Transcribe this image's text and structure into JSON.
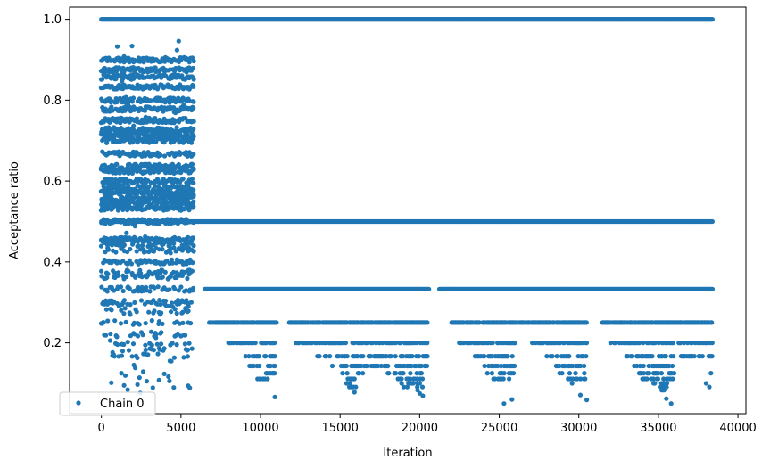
{
  "chart_data": {
    "type": "scatter",
    "xlabel": "Iteration",
    "ylabel": "Acceptance ratio",
    "xlim": [
      -2000,
      40500
    ],
    "ylim": [
      0.025,
      1.03
    ],
    "x_ticks": [
      0,
      5000,
      10000,
      15000,
      20000,
      25000,
      30000,
      35000,
      40000
    ],
    "x_tick_labels": [
      "0",
      "5000",
      "10000",
      "15000",
      "20000",
      "25000",
      "30000",
      "35000",
      "40000"
    ],
    "y_ticks": [
      0.2,
      0.4,
      0.6,
      0.8,
      1.0
    ],
    "y_tick_labels": [
      "0.2",
      "0.4",
      "0.6",
      "0.8",
      "1.0"
    ],
    "grid": false,
    "legend": {
      "placement": "bottom-left",
      "entries": [
        "Chain 0"
      ]
    },
    "marker_color": "#1f77b4",
    "series": [
      {
        "name": "Chain 0",
        "x_range": [
          0,
          38400
        ],
        "dense_levels": [
          1.0,
          0.5,
          0.333
        ],
        "burn_in_end": 6000,
        "burn_in_levels": [
          0.9,
          0.875,
          0.857,
          0.833,
          0.8,
          0.778,
          0.75,
          0.727,
          0.714,
          0.7,
          0.667,
          0.636,
          0.625,
          0.6,
          0.583,
          0.571,
          0.556,
          0.545,
          0.533,
          0.5,
          0.455,
          0.444,
          0.429,
          0.4,
          0.375,
          0.364,
          0.333,
          0.3,
          0.286,
          0.273,
          0.25,
          0.222,
          0.2,
          0.182,
          0.167,
          0.143,
          0.125,
          0.111,
          0.1,
          0.09
        ],
        "band_segments": [
          {
            "level": 0.25,
            "from": 6800,
            "to": 11000
          },
          {
            "level": 0.25,
            "from": 11800,
            "to": 20500
          },
          {
            "level": 0.25,
            "from": 22000,
            "to": 30500
          },
          {
            "level": 0.25,
            "from": 31500,
            "to": 38400
          },
          {
            "level": 0.2,
            "from": 8000,
            "to": 11000
          },
          {
            "level": 0.2,
            "from": 12200,
            "to": 20500
          },
          {
            "level": 0.2,
            "from": 22500,
            "to": 26000
          },
          {
            "level": 0.2,
            "from": 27000,
            "to": 30500
          },
          {
            "level": 0.2,
            "from": 32000,
            "to": 38400
          },
          {
            "level": 0.167,
            "from": 9000,
            "to": 11000
          },
          {
            "level": 0.167,
            "from": 13500,
            "to": 20500
          },
          {
            "level": 0.167,
            "from": 23500,
            "to": 26000
          },
          {
            "level": 0.167,
            "from": 28000,
            "to": 30500
          },
          {
            "level": 0.167,
            "from": 33000,
            "to": 38400
          },
          {
            "level": 0.143,
            "from": 9300,
            "to": 11000
          },
          {
            "level": 0.143,
            "from": 14500,
            "to": 20500
          },
          {
            "level": 0.143,
            "from": 24000,
            "to": 26000
          },
          {
            "level": 0.143,
            "from": 28500,
            "to": 30500
          },
          {
            "level": 0.143,
            "from": 33500,
            "to": 36000
          },
          {
            "level": 0.125,
            "from": 9500,
            "to": 11000
          },
          {
            "level": 0.125,
            "from": 14800,
            "to": 16500
          },
          {
            "level": 0.125,
            "from": 18000,
            "to": 20500
          },
          {
            "level": 0.125,
            "from": 24200,
            "to": 26000
          },
          {
            "level": 0.125,
            "from": 28800,
            "to": 30500
          },
          {
            "level": 0.125,
            "from": 33800,
            "to": 36000
          },
          {
            "level": 0.111,
            "from": 9800,
            "to": 10800
          },
          {
            "level": 0.111,
            "from": 15000,
            "to": 16300
          },
          {
            "level": 0.111,
            "from": 18500,
            "to": 20400
          },
          {
            "level": 0.111,
            "from": 24500,
            "to": 25800
          },
          {
            "level": 0.111,
            "from": 29200,
            "to": 30400
          },
          {
            "level": 0.111,
            "from": 34000,
            "to": 35900
          },
          {
            "level": 0.1,
            "from": 15200,
            "to": 16200
          },
          {
            "level": 0.1,
            "from": 18800,
            "to": 20300
          },
          {
            "level": 0.1,
            "from": 29500,
            "to": 30300
          },
          {
            "level": 0.1,
            "from": 34500,
            "to": 35800
          },
          {
            "level": 0.091,
            "from": 15500,
            "to": 16000
          },
          {
            "level": 0.091,
            "from": 19000,
            "to": 20200
          },
          {
            "level": 0.091,
            "from": 34800,
            "to": 35700
          },
          {
            "level": 0.083,
            "from": 19300,
            "to": 20100
          },
          {
            "level": 0.083,
            "from": 35000,
            "to": 35600
          }
        ]
      }
    ]
  }
}
